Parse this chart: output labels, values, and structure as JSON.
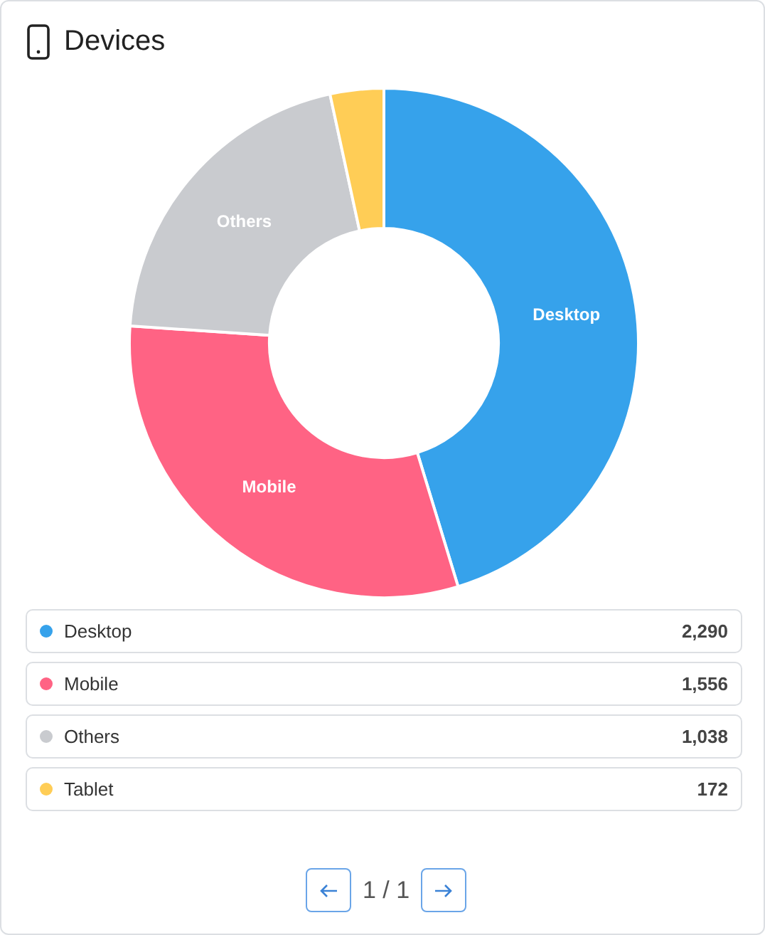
{
  "chart_data": {
    "type": "donut",
    "title": "Devices",
    "categories": [
      "Desktop",
      "Mobile",
      "Others",
      "Tablet"
    ],
    "values": [
      2290,
      1556,
      1038,
      172
    ],
    "colors": [
      "#36a2eb",
      "#ff6384",
      "#c9cbcf",
      "#ffcd56"
    ],
    "value_labels": [
      "2,290",
      "1,556",
      "1,038",
      "172"
    ],
    "legend": "bottom",
    "annotations": [
      "1 / 1"
    ]
  }
}
